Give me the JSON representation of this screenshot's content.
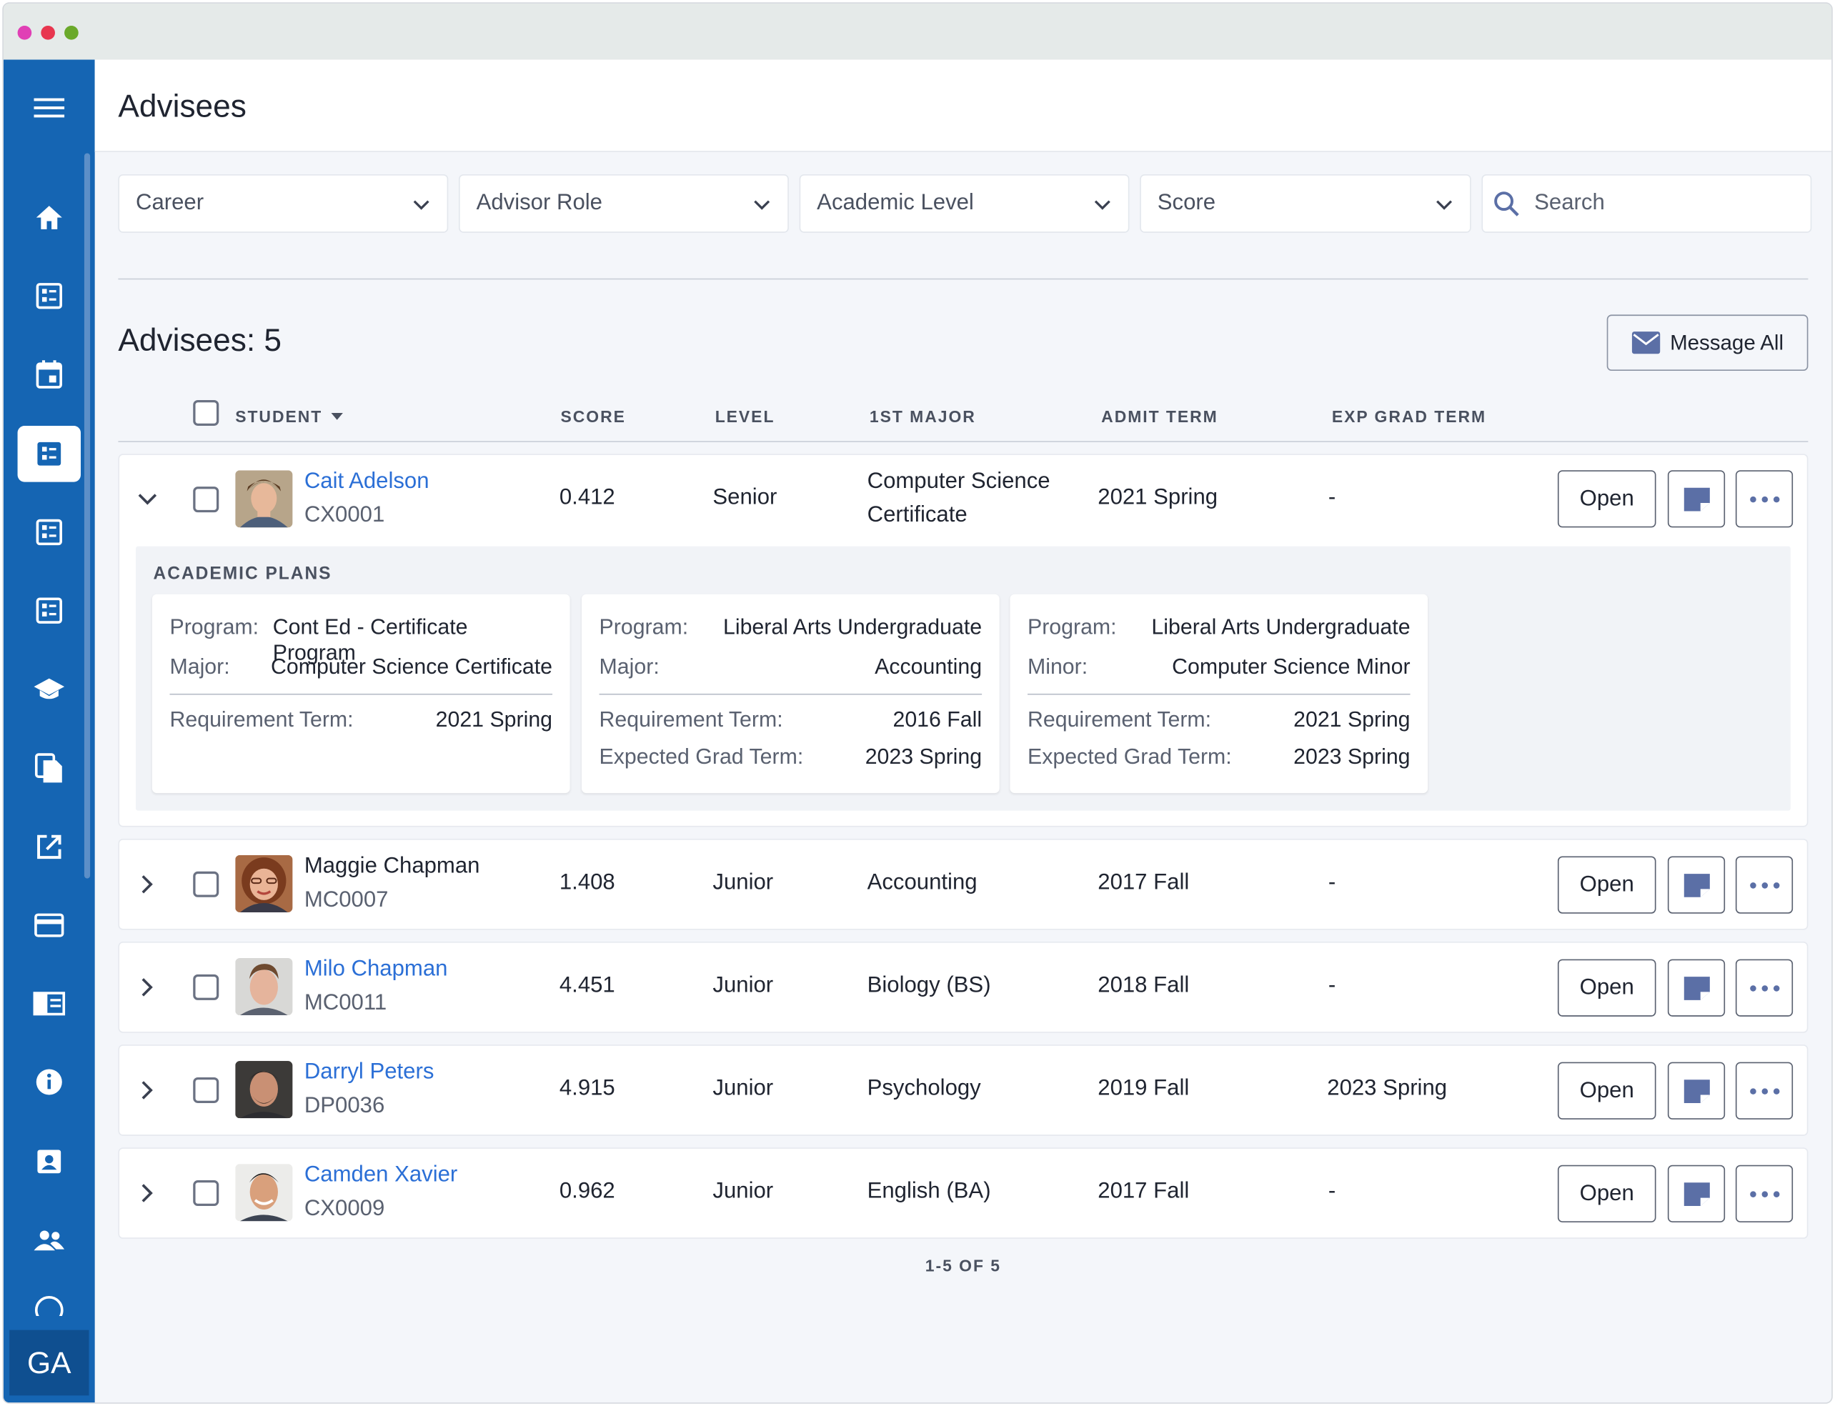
{
  "window": {
    "dots": [
      "#e040b5",
      "#e8364f",
      "#6aa92a"
    ]
  },
  "sidebar": {
    "icons": [
      "menu-icon",
      "home-icon",
      "dashboard-icon",
      "calendar-icon",
      "advisees-icon",
      "list-icon",
      "list-alt-icon",
      "graduation-cap-icon",
      "documents-icon",
      "external-link-icon",
      "credit-card-icon",
      "catalog-icon",
      "info-icon",
      "contact-card-icon",
      "people-icon",
      "help-icon"
    ],
    "user_initials": "GA"
  },
  "header": {
    "title": "Advisees"
  },
  "filters": {
    "career": "Career",
    "advisor_role": "Advisor Role",
    "academic_level": "Academic Level",
    "score": "Score",
    "search_placeholder": "Search"
  },
  "summary": {
    "title": "Advisees: 5",
    "message_all": "Message All"
  },
  "columns": {
    "student": "STUDENT",
    "score": "SCORE",
    "level": "LEVEL",
    "major": "1ST MAJOR",
    "admit": "ADMIT TERM",
    "grad": "EXP GRAD TERM"
  },
  "rows": [
    {
      "name": "Cait Adelson",
      "id": "CX0001",
      "score": "0.412",
      "level": "Senior",
      "major_line1": "Computer Science",
      "major_line2": "Certificate",
      "admit": "2021 Spring",
      "grad": "-",
      "open": "Open",
      "linked": true,
      "expanded": true
    },
    {
      "name": "Maggie Chapman",
      "id": "MC0007",
      "score": "1.408",
      "level": "Junior",
      "major_line1": "Accounting",
      "major_line2": "",
      "admit": "2017 Fall",
      "grad": "-",
      "open": "Open",
      "linked": false,
      "expanded": false
    },
    {
      "name": "Milo Chapman",
      "id": "MC0011",
      "score": "4.451",
      "level": "Junior",
      "major_line1": "Biology (BS)",
      "major_line2": "",
      "admit": "2018 Fall",
      "grad": "-",
      "open": "Open",
      "linked": true,
      "expanded": false
    },
    {
      "name": "Darryl Peters",
      "id": "DP0036",
      "score": "4.915",
      "level": "Junior",
      "major_line1": "Psychology",
      "major_line2": "",
      "admit": "2019 Fall",
      "grad": "2023 Spring",
      "open": "Open",
      "linked": true,
      "expanded": false
    },
    {
      "name": "Camden Xavier",
      "id": "CX0009",
      "score": "0.962",
      "level": "Junior",
      "major_line1": "English (BA)",
      "major_line2": "",
      "admit": "2017 Fall",
      "grad": "-",
      "open": "Open",
      "linked": true,
      "expanded": false
    }
  ],
  "academic_plans": {
    "title": "ACADEMIC PLANS",
    "plans": [
      {
        "program_label": "Program:",
        "program": "Cont Ed - Certificate Program",
        "second_label": "Major:",
        "second": "Computer Science Certificate",
        "req_label": "Requirement Term:",
        "req": "2021 Spring",
        "grad_label": "",
        "grad": ""
      },
      {
        "program_label": "Program:",
        "program": "Liberal Arts Undergraduate",
        "second_label": "Major:",
        "second": "Accounting",
        "req_label": "Requirement Term:",
        "req": "2016 Fall",
        "grad_label": "Expected Grad Term:",
        "grad": "2023 Spring"
      },
      {
        "program_label": "Program:",
        "program": "Liberal Arts Undergraduate",
        "second_label": "Minor:",
        "second": "Computer Science Minor",
        "req_label": "Requirement Term:",
        "req": "2021 Spring",
        "grad_label": "Expected Grad Term:",
        "grad": "2023 Spring"
      }
    ]
  },
  "pagination": "1-5 OF 5",
  "colors": {
    "sidebar": "#1565b3",
    "link": "#2b6fd6",
    "icon_button": "#5b6fa6"
  }
}
